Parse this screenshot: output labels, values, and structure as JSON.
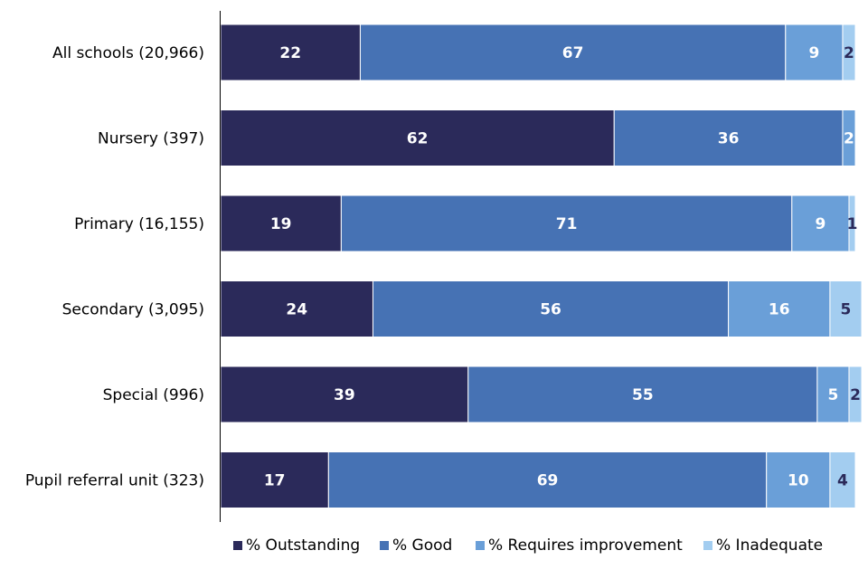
{
  "chart_data": {
    "type": "bar",
    "orientation": "horizontal",
    "stacked": true,
    "categories": [
      "All schools (20,966)",
      "Nursery (397)",
      "Primary (16,155)",
      "Secondary (3,095)",
      "Special (996)",
      "Pupil referral unit (323)"
    ],
    "series": [
      {
        "name": "% Outstanding",
        "color": "#2b2a5a",
        "values": [
          22,
          62,
          19,
          24,
          39,
          17
        ]
      },
      {
        "name": "% Good",
        "color": "#4672b4",
        "values": [
          67,
          36,
          71,
          56,
          55,
          69
        ]
      },
      {
        "name": "% Requires improvement",
        "color": "#6a9fd8",
        "values": [
          9,
          2,
          9,
          16,
          5,
          10
        ]
      },
      {
        "name": "% Inadequate",
        "color": "#a3cdf0",
        "values": [
          2,
          0,
          1,
          5,
          2,
          4
        ]
      }
    ],
    "data_labels": [
      [
        "22",
        "67",
        "9",
        "2"
      ],
      [
        "62",
        "36",
        "2",
        ""
      ],
      [
        "19",
        "71",
        "9",
        "1"
      ],
      [
        "24",
        "56",
        "16",
        "5"
      ],
      [
        "39",
        "55",
        "5",
        "2"
      ],
      [
        "17",
        "69",
        "10",
        "4"
      ]
    ],
    "xlim": [
      0,
      100
    ],
    "title": "",
    "xlabel": "",
    "ylabel": "",
    "grid": false,
    "legend_position": "bottom"
  }
}
